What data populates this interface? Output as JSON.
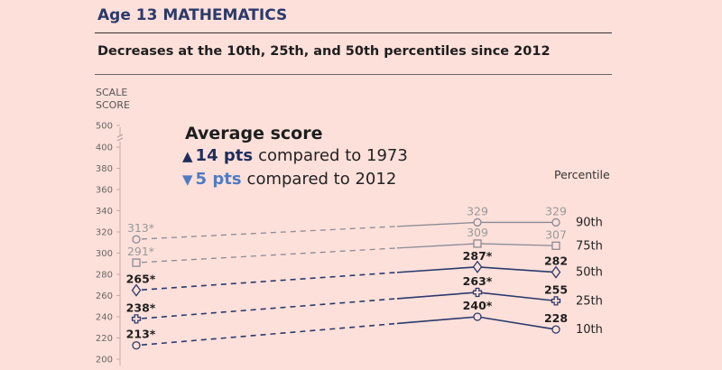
{
  "header": {
    "title": "Age 13 MATHEMATICS",
    "subtitle": "Decreases at the 10th, 25th, and 50th percentiles since 2012"
  },
  "average_score": {
    "title": "Average score",
    "up_value": "14 pts",
    "up_text": "compared to 1973",
    "down_value": "5 pts",
    "down_text": "compared to 2012"
  },
  "colors": {
    "background": "#fde0da",
    "title": "#2b3a6b",
    "dark_series": "#2b3a6b",
    "light_series": "#8a8a96",
    "up_arrow": "#1f2d5e",
    "down_arrow": "#4f7cc4"
  },
  "chart_data": {
    "type": "line",
    "ylabel_lines": [
      "SCALE",
      "SCORE"
    ],
    "legend_title": "Percentile",
    "ylim": [
      200,
      500
    ],
    "yticks": [
      200,
      220,
      240,
      260,
      280,
      300,
      320,
      340,
      360,
      380,
      400,
      500
    ],
    "series": [
      {
        "name": "90th",
        "marker": "circle",
        "style": "light",
        "labels": [
          "313*",
          "329",
          "329"
        ],
        "values": [
          313,
          329,
          329
        ]
      },
      {
        "name": "75th",
        "marker": "square",
        "style": "light",
        "labels": [
          "291*",
          "309",
          "307"
        ],
        "values": [
          291,
          309,
          307
        ]
      },
      {
        "name": "50th",
        "marker": "diamond",
        "style": "dark",
        "labels": [
          "265*",
          "287*",
          "282"
        ],
        "values": [
          265,
          287,
          282
        ]
      },
      {
        "name": "25th",
        "marker": "plus",
        "style": "dark",
        "labels": [
          "238*",
          "263*",
          "255"
        ],
        "values": [
          238,
          263,
          255
        ]
      },
      {
        "name": "10th",
        "marker": "circle",
        "style": "dark",
        "labels": [
          "213*",
          "240*",
          "228"
        ],
        "values": [
          213,
          240,
          228
        ]
      }
    ]
  }
}
